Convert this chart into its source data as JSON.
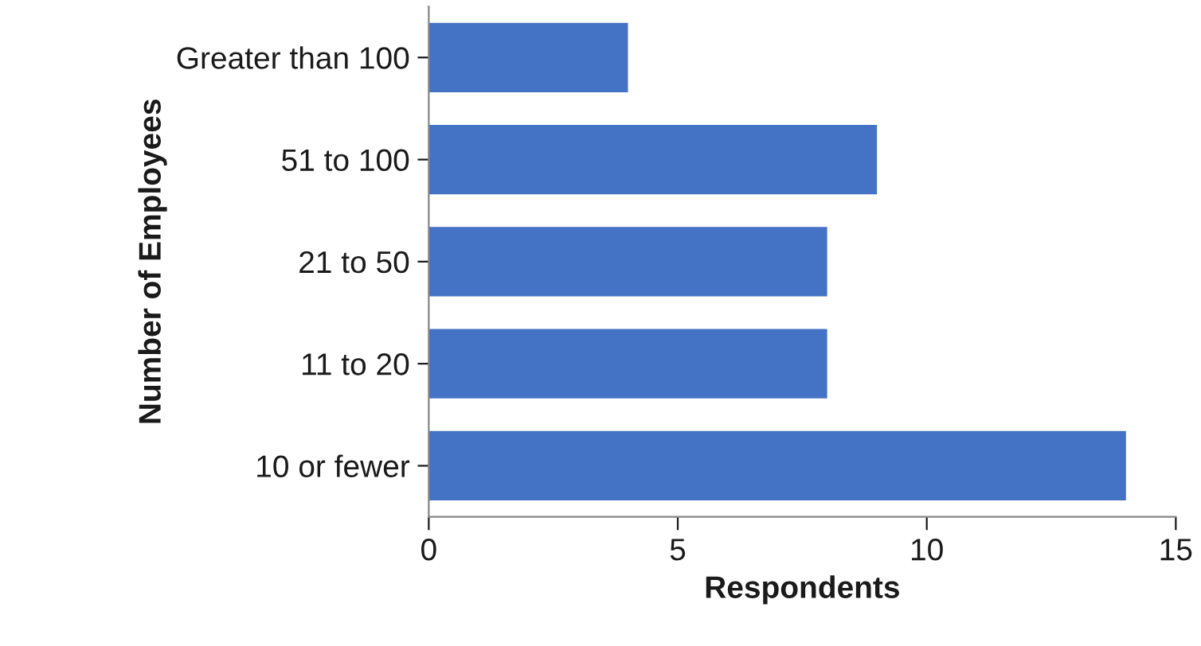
{
  "chart_data": {
    "type": "bar",
    "orientation": "horizontal",
    "xlabel": "Respondents",
    "ylabel": "Number of Employees",
    "categories": [
      "Greater than 100",
      "51 to 100",
      "21 to 50",
      "11 to 20",
      "10 or fewer"
    ],
    "values": [
      4,
      9,
      8,
      8,
      14
    ],
    "color": "#4472c4",
    "xlim": [
      0,
      15
    ],
    "xticks": [
      0,
      5,
      10,
      15
    ],
    "grid": false,
    "legend": false
  }
}
